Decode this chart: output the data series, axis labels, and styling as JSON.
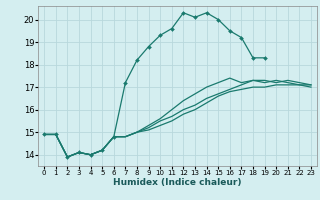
{
  "xlabel": "Humidex (Indice chaleur)",
  "bg_color": "#d4eef0",
  "grid_color": "#b8d8dc",
  "line_color": "#1a7a6e",
  "xlim": [
    -0.5,
    23.5
  ],
  "ylim": [
    13.5,
    20.6
  ],
  "yticks": [
    14,
    15,
    16,
    17,
    18,
    19,
    20
  ],
  "xticks": [
    0,
    1,
    2,
    3,
    4,
    5,
    6,
    7,
    8,
    9,
    10,
    11,
    12,
    13,
    14,
    15,
    16,
    17,
    18,
    19,
    20,
    21,
    22,
    23
  ],
  "series": [
    {
      "x": [
        0,
        1,
        2,
        3,
        4,
        5,
        6,
        7,
        8,
        9,
        10,
        11,
        12,
        13,
        14,
        15,
        16,
        17,
        18,
        19
      ],
      "y": [
        14.9,
        14.9,
        13.9,
        14.1,
        14.0,
        14.2,
        14.8,
        17.2,
        18.2,
        18.8,
        19.3,
        19.6,
        20.3,
        20.1,
        20.3,
        20.0,
        19.5,
        19.2,
        18.3,
        18.3
      ],
      "marker": true
    },
    {
      "x": [
        0,
        1,
        2,
        3,
        4,
        5,
        6,
        7,
        8,
        9,
        10,
        11,
        12,
        13,
        14,
        15,
        16,
        17,
        18,
        19,
        20,
        21,
        22,
        23
      ],
      "y": [
        14.9,
        14.9,
        13.9,
        14.1,
        14.0,
        14.2,
        14.8,
        14.8,
        15.0,
        15.3,
        15.6,
        16.0,
        16.4,
        16.7,
        17.0,
        17.2,
        17.4,
        17.2,
        17.3,
        17.3,
        17.2,
        17.3,
        17.2,
        17.1
      ],
      "marker": false
    },
    {
      "x": [
        0,
        1,
        2,
        3,
        4,
        5,
        6,
        7,
        8,
        9,
        10,
        11,
        12,
        13,
        14,
        15,
        16,
        17,
        18,
        19,
        20,
        21,
        22,
        23
      ],
      "y": [
        14.9,
        14.9,
        13.9,
        14.1,
        14.0,
        14.2,
        14.8,
        14.8,
        15.0,
        15.2,
        15.5,
        15.7,
        16.0,
        16.2,
        16.5,
        16.7,
        16.9,
        17.1,
        17.3,
        17.2,
        17.3,
        17.2,
        17.1,
        17.1
      ],
      "marker": false
    },
    {
      "x": [
        0,
        1,
        2,
        3,
        4,
        5,
        6,
        7,
        8,
        9,
        10,
        11,
        12,
        13,
        14,
        15,
        16,
        17,
        18,
        19,
        20,
        21,
        22,
        23
      ],
      "y": [
        14.9,
        14.9,
        13.9,
        14.1,
        14.0,
        14.2,
        14.8,
        14.8,
        15.0,
        15.1,
        15.3,
        15.5,
        15.8,
        16.0,
        16.3,
        16.6,
        16.8,
        16.9,
        17.0,
        17.0,
        17.1,
        17.1,
        17.1,
        17.0
      ],
      "marker": false
    }
  ]
}
